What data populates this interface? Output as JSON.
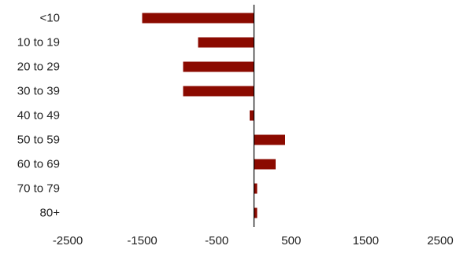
{
  "chart_data": {
    "type": "bar",
    "orientation": "horizontal",
    "categories": [
      "<10",
      "10 to 19",
      "20 to 29",
      "30 to 39",
      "40 to 49",
      "50 to 59",
      "60 to 69",
      "70 to 79",
      "80+"
    ],
    "values": [
      -1500,
      -750,
      -950,
      -950,
      -60,
      420,
      290,
      40,
      40
    ],
    "xlim": [
      -2500,
      2500
    ],
    "xticks": [
      -2500,
      -1500,
      -500,
      500,
      1500,
      2500
    ],
    "xtick_labels": [
      "-2500",
      "-1500",
      "-500",
      "500",
      "1500",
      "2500"
    ],
    "title": "",
    "xlabel": "",
    "ylabel": "",
    "grid": false,
    "legend": "none",
    "bar_color": "#8B0A00",
    "zero_line_color": "#000000"
  }
}
